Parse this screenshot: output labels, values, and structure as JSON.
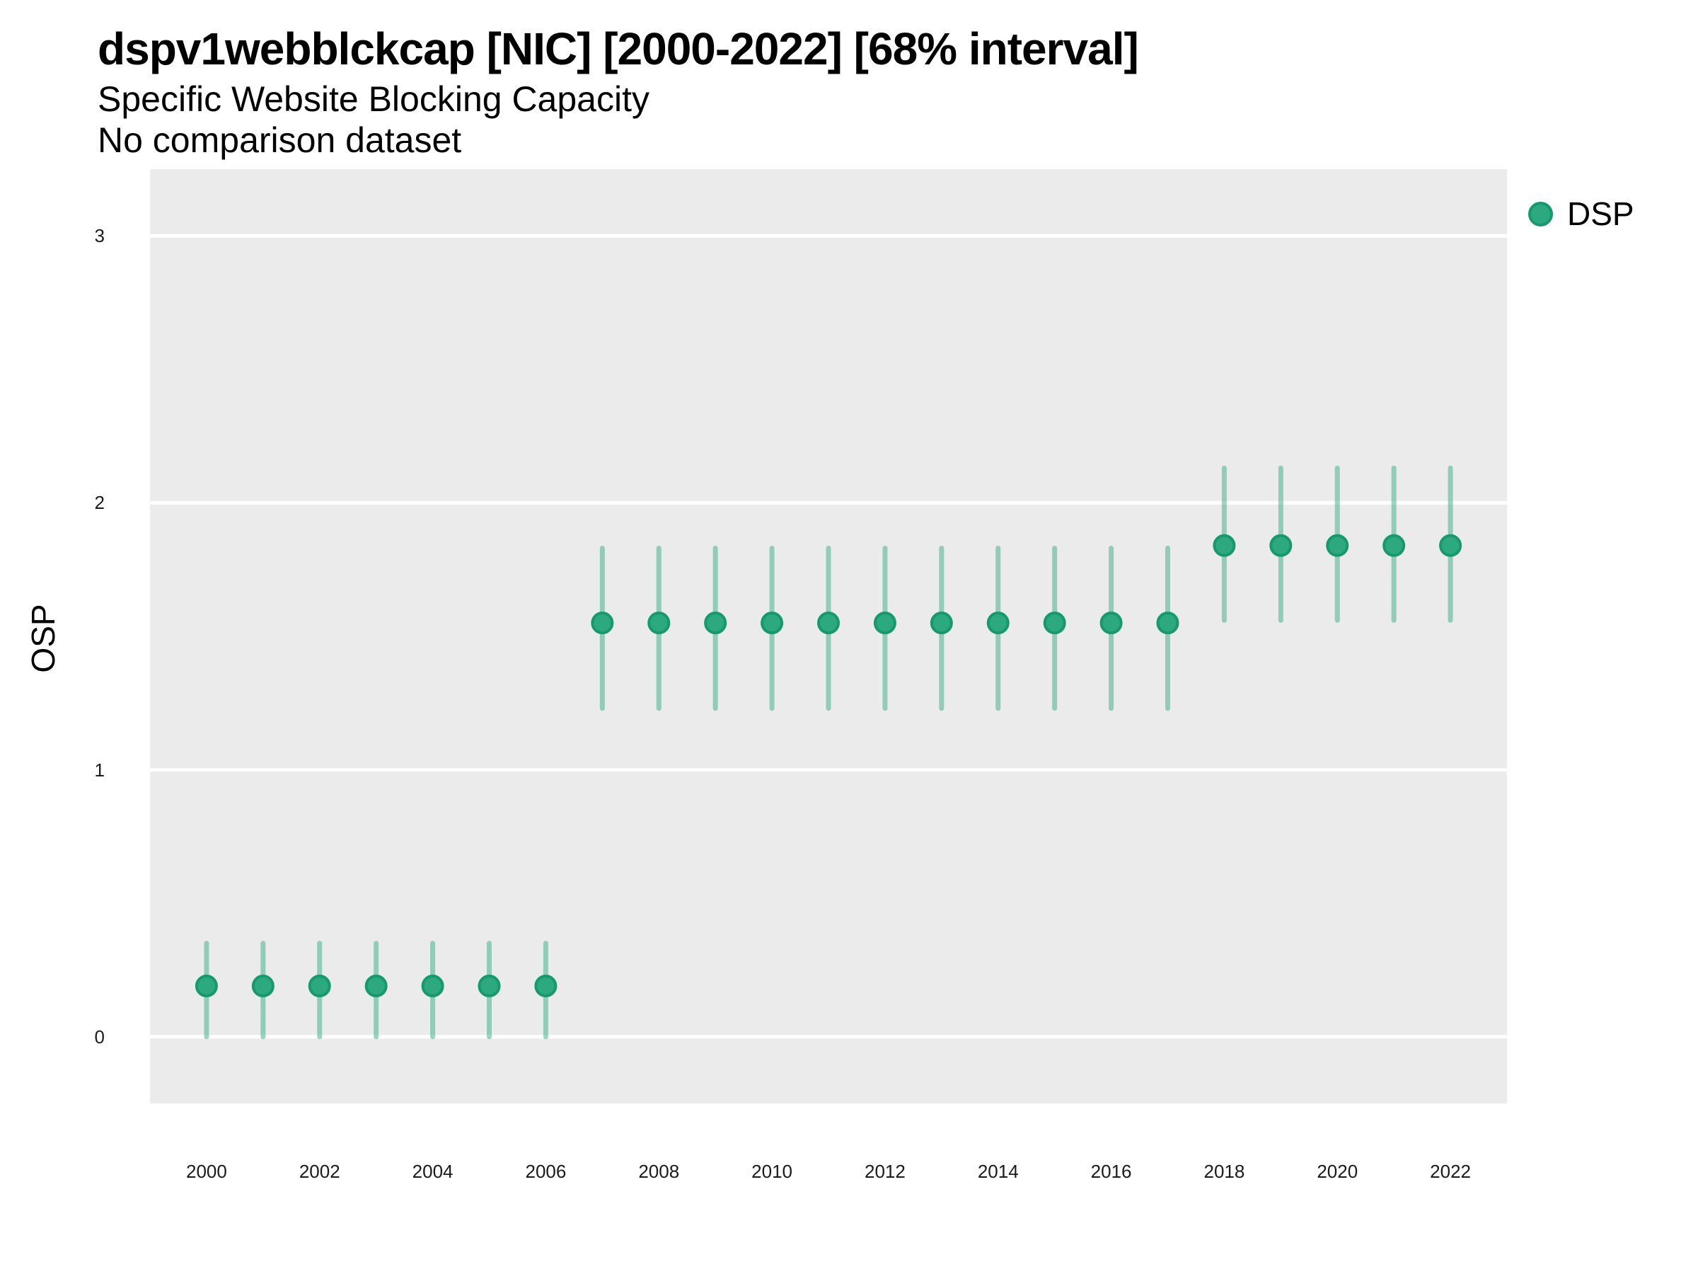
{
  "header": {
    "title": "dspv1webblckcap [NIC] [2000-2022] [68% interval]",
    "subtitle": "Specific Website Blocking Capacity",
    "comparison_note": "No comparison dataset"
  },
  "legend": {
    "position": "right-top",
    "items": [
      {
        "label": "DSP",
        "color": "#2CA97E",
        "stroke_color": "#16996F"
      }
    ]
  },
  "colors": {
    "page_background": "#FFFFFF",
    "panel_background": "#EBEBEB",
    "gridline": "#FFFFFF",
    "text": "#000000",
    "point_fill": "#2CA97E",
    "point_stroke": "#16996F",
    "interval_green": "#2BAA7F"
  },
  "chart_data": {
    "type": "scatter",
    "mark": "pointrange",
    "interval_label": "68% interval",
    "title": "dspv1webblckcap [NIC] [2000-2022] [68% interval]",
    "subtitle": "Specific Website Blocking Capacity",
    "note": "No comparison dataset",
    "xlabel": "",
    "ylabel": "OSP",
    "xlim": [
      1999,
      2023
    ],
    "ylim": [
      -0.25,
      3.25
    ],
    "x_ticks": [
      2000,
      2002,
      2004,
      2006,
      2008,
      2010,
      2012,
      2014,
      2016,
      2018,
      2020,
      2022
    ],
    "y_ticks": [
      0,
      1,
      2,
      3
    ],
    "grid": {
      "horizontal_major": true,
      "vertical": false,
      "color": "#FFFFFF"
    },
    "legend_position": "right",
    "series": [
      {
        "name": "DSP",
        "point_color": "#2CA97E",
        "point_stroke": "#16996F",
        "interval_color": "#2BAA7F",
        "interval_opacity": 0.48,
        "x": [
          2000,
          2001,
          2002,
          2003,
          2004,
          2005,
          2006,
          2007,
          2008,
          2009,
          2010,
          2011,
          2012,
          2013,
          2014,
          2015,
          2016,
          2017,
          2018,
          2019,
          2020,
          2021,
          2022
        ],
        "y": [
          0.19,
          0.19,
          0.19,
          0.19,
          0.19,
          0.19,
          0.19,
          1.55,
          1.55,
          1.55,
          1.55,
          1.55,
          1.55,
          1.55,
          1.55,
          1.55,
          1.55,
          1.55,
          1.84,
          1.84,
          1.84,
          1.84,
          1.84
        ],
        "y_low": [
          0.0,
          0.0,
          0.0,
          0.0,
          0.0,
          0.0,
          0.0,
          1.23,
          1.23,
          1.23,
          1.23,
          1.23,
          1.23,
          1.23,
          1.23,
          1.23,
          1.23,
          1.23,
          1.56,
          1.56,
          1.56,
          1.56,
          1.56
        ],
        "y_high": [
          0.35,
          0.35,
          0.35,
          0.35,
          0.35,
          0.35,
          0.35,
          1.83,
          1.83,
          1.83,
          1.83,
          1.83,
          1.83,
          1.83,
          1.83,
          1.83,
          1.83,
          1.83,
          2.13,
          2.13,
          2.13,
          2.13,
          2.13
        ]
      }
    ]
  }
}
